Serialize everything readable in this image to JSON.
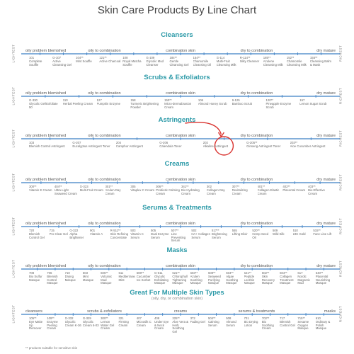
{
  "title": "Skin Care Products By Line Chart",
  "side_labels": {
    "left": "LIGHTEST",
    "right": "RICHEST"
  },
  "footnote": "** products suitable for sensitive skin",
  "sections": [
    {
      "title": "Cleansers",
      "skin_labels": [
        "oily problem blemished",
        "oily to combination",
        "combination skin",
        "dry to combination",
        "dry mature"
      ],
      "products": [
        {
          "code": "101",
          "name": "Complete Souffle"
        },
        {
          "code": "G-107",
          "name": "Active Cleansing Gel"
        },
        {
          "code": "104**",
          "name": "Mint Souffle"
        },
        {
          "code": "121**",
          "name": "Active Charcoal"
        },
        {
          "code": "108",
          "name": "Royal Matcha Souffle"
        },
        {
          "code": "G-109",
          "name": "Glycolic Mud Cleanser"
        },
        {
          "code": "184**",
          "name": "Gentle Cleansing Gel"
        },
        {
          "code": "154**",
          "name": "Chamomile Cleansing Oil"
        },
        {
          "code": "G-114",
          "name": "Multi-Fruit Cleansing Milk"
        },
        {
          "code": "R-114**",
          "name": "Silky Cleanser"
        },
        {
          "code": "185**",
          "name": "Azulene Cleansing Milk"
        },
        {
          "code": "152**",
          "name": "Chamomile Cleansing Milk"
        },
        {
          "code": "155**",
          "name": "Cleansing Balm & Mask"
        }
      ]
    },
    {
      "title": "Scrubs & Exfoliators",
      "skin_labels": [
        "oily problem blemished",
        "oily to combination",
        "combination skin",
        "dry to combination",
        "dry mature"
      ],
      "products": [
        {
          "code": "G-330",
          "name": "Glycolic Gel/Exfoliate 50"
        },
        {
          "code": "110",
          "name": "Herbal Peeling Cream"
        },
        {
          "code": "127",
          "name": "Pumpkin Enzyme"
        },
        {
          "code": "158",
          "name": "Turmeric Brightening Powder"
        },
        {
          "code": "150**",
          "name": "Micro-dermabrasion Cream"
        },
        {
          "code": "106",
          "name": "Almond Honey Scrub"
        },
        {
          "code": "9-125",
          "name": "Bamboo Scrub"
        },
        {
          "code": "120**",
          "name": "Pineapple Enzyme Scrub"
        },
        {
          "code": "157",
          "name": "Lemon Sugar Scrub"
        }
      ]
    },
    {
      "title": "Astringents",
      "skin_labels": [
        "oily problem blemished",
        "oily to combination",
        "combination skin",
        "dry to combination",
        "dry mature"
      ],
      "products": [
        {
          "code": "103",
          "name": "Blemish Control Astringent"
        },
        {
          "code": "G-207",
          "name": "Eucalyptus Astringent Toner"
        },
        {
          "code": "204",
          "name": "Camphor Astringent"
        },
        {
          "code": "G-206",
          "name": "Calendula Toner"
        },
        {
          "code": "202",
          "name": "Alkaline Astringent"
        },
        {
          "code": "G-205**",
          "name": "Ginseng Astringent Toner"
        },
        {
          "code": "203**",
          "name": "Aloe Cucumber Astringent"
        }
      ]
    },
    {
      "title": "Creams",
      "skin_labels": [
        "oily problem blemished",
        "oily to combination",
        "combination skin",
        "dry to combination",
        "dry mature"
      ],
      "products": [
        {
          "code": "300**",
          "name": "Vitamin E Cream"
        },
        {
          "code": "404**",
          "name": "Ultra-Light Seaweed Cream"
        },
        {
          "code": "G-323",
          "name": "Multi-Fruit Cream"
        },
        {
          "code": "301**",
          "name": "Azulen Day Cream"
        },
        {
          "code": "305",
          "name": "Vitaplex C Cream"
        },
        {
          "code": "306**",
          "name": "Probiotic Calming Cream"
        },
        {
          "code": "341**",
          "name": "Bio Hydrating Cream"
        },
        {
          "code": "302",
          "name": "Collagen Day Cream"
        },
        {
          "code": "307**",
          "name": "Revitalizing Cream"
        },
        {
          "code": "401**",
          "name": "Collagen Elastic Cream"
        },
        {
          "code": "402**",
          "name": "Placental Cream"
        },
        {
          "code": "403**",
          "name": "Bio Effective Cream"
        }
      ]
    },
    {
      "title": "Serums & Treatments",
      "skin_labels": [
        "oily problem blemished",
        "oily to combination",
        "combination skin",
        "dry to combination",
        "dry mature"
      ],
      "products": [
        {
          "code": "720",
          "name": "Blemish Control Gel"
        },
        {
          "code": "715",
          "name": "Pro Clear Gel"
        },
        {
          "code": "G-322",
          "name": "Alpha Brightener"
        },
        {
          "code": "901",
          "name": "Vitamin A"
        },
        {
          "code": "R-511**",
          "name": "Skin Refining Concentrate"
        },
        {
          "code": "503",
          "name": "Vitamin C Serum"
        },
        {
          "code": "505",
          "name": "Dual Enzyme Serum"
        },
        {
          "code": "507**",
          "name": "Line Preventing Serum"
        },
        {
          "code": "502",
          "name": "HA+ Collagen Serum"
        },
        {
          "code": "517**",
          "name": "Brightening Serum"
        },
        {
          "code": "555",
          "name": "Lifting Elixir"
        },
        {
          "code": "520**",
          "name": "Hemp Seed Oil"
        },
        {
          "code": "509",
          "name": "Wild Silk"
        },
        {
          "code": "510",
          "name": "24K Gold"
        },
        {
          "code": "515**",
          "name": "Face Line Lift"
        }
      ]
    },
    {
      "title": "Masks",
      "skin_labels": [
        "oily problem blemished",
        "oily to combination",
        "combination skin",
        "dry to combination",
        "dry mature"
      ],
      "products": [
        {
          "code": "708",
          "name": "Bio Sulfur Masque"
        },
        {
          "code": "706",
          "name": "Blemish Control Masque"
        },
        {
          "code": "710",
          "name": "Drying Masque"
        },
        {
          "code": "603",
          "name": "Mint Masque"
        },
        {
          "code": "605**",
          "name": "Volcanic Mud Masque"
        },
        {
          "code": "611",
          "name": "Mediterranean Mint"
        },
        {
          "code": "608**",
          "name": "Cucumber Ice Sorbet"
        },
        {
          "code": "G-611",
          "name": "Glycolic Exfoliating Masque"
        },
        {
          "code": "621**",
          "name": "Chlorophyll Tightening Masque"
        },
        {
          "code": "603**",
          "name": "Azulen Soothing Masque"
        },
        {
          "code": "609**",
          "name": "Seaweed Purifying Masque"
        },
        {
          "code": "604**",
          "name": "Algae Soothing Masque"
        },
        {
          "code": "621**",
          "name": "Peptide Lecithin Masque"
        },
        {
          "code": "602**",
          "name": "Skin Recovery Masque"
        },
        {
          "code": "604**",
          "name": "Collagen Treatment Masque"
        },
        {
          "code": "617",
          "name": "Nordic Magnetic Mud"
        },
        {
          "code": "640**",
          "name": "Placental Nourishing Masque"
        }
      ]
    },
    {
      "title": "Great For Multiple Skin Types",
      "subtitle": "(oily, dry, or combination skin)",
      "skin_labels": [
        "cleansers",
        "scrubs & exfoliators",
        "creams",
        "serums & treatments",
        "masks"
      ],
      "products": [
        {
          "code": "105**",
          "name": "Eye Make Up Remover"
        },
        {
          "code": "109**",
          "name": "Enzyme Peeling Cream"
        },
        {
          "code": "G-332",
          "name": "Glycolic Cream K-36"
        },
        {
          "code": "G-329",
          "name": "Glycolic Cream 6-03"
        },
        {
          "code": "300**",
          "name": "Lemon Water Gel Cream"
        },
        {
          "code": "321",
          "name": "Firming Cream"
        },
        {
          "code": "407",
          "name": "Microsilk C Cream"
        },
        {
          "code": "408",
          "name": "Under Eye & Neck Cream"
        },
        {
          "code": "325**",
          "name": "Aloe Vera & Herb Soothing Gel"
        },
        {
          "code": "372",
          "name": "Fading Gel"
        },
        {
          "code": "504**",
          "name": "Calming Serum"
        },
        {
          "code": "508",
          "name": "Almond Serum"
        },
        {
          "code": "701",
          "name": "Bio Drying Lotion"
        },
        {
          "code": "702**",
          "name": "Bio Soothing Cream"
        },
        {
          "code": "717",
          "name": "Blemish Control Gel"
        },
        {
          "code": "715**",
          "name": "Sesame Oxygen Masque"
        },
        {
          "code": "610",
          "name": "Ordinary & Polish Masque"
        }
      ]
    }
  ]
}
